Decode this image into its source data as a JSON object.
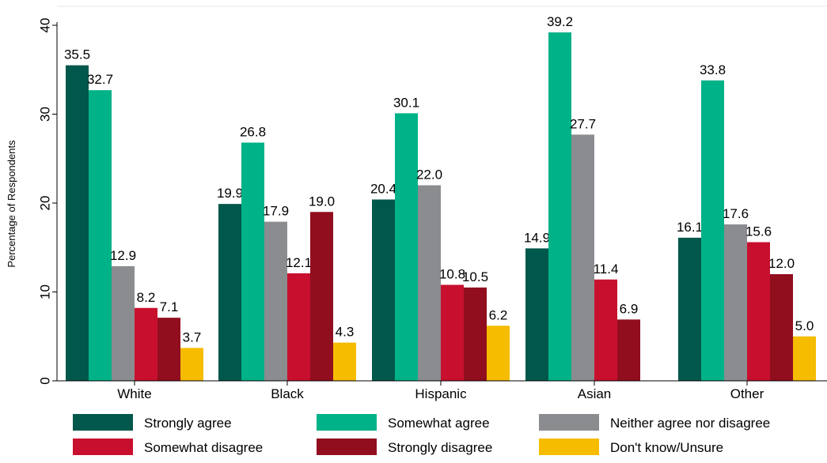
{
  "chart_data": {
    "type": "bar",
    "ylabel": "Percentage of Respondents",
    "ylim": [
      0,
      40
    ],
    "yticks": [
      0,
      10,
      20,
      30,
      40
    ],
    "categories": [
      "White",
      "Black",
      "Hispanic",
      "Asian",
      "Other"
    ],
    "series": [
      {
        "name": "Strongly agree",
        "color": "#00574b",
        "values": [
          35.5,
          19.9,
          20.4,
          14.9,
          16.1
        ]
      },
      {
        "name": "Somewhat agree",
        "color": "#00b288",
        "values": [
          32.7,
          26.8,
          30.1,
          39.2,
          33.8
        ]
      },
      {
        "name": "Neither agree nor disagree",
        "color": "#8a8c8f",
        "values": [
          12.9,
          17.9,
          22.0,
          27.7,
          17.6
        ]
      },
      {
        "name": "Somewhat disagree",
        "color": "#c8102e",
        "values": [
          8.2,
          12.1,
          10.8,
          11.4,
          15.6
        ]
      },
      {
        "name": "Strongly disagree",
        "color": "#910e1f",
        "values": [
          7.1,
          19.0,
          10.5,
          6.9,
          12.0
        ]
      },
      {
        "name": "Don't know/Unsure",
        "color": "#f5bc00",
        "values": [
          3.7,
          4.3,
          6.2,
          null,
          5.0
        ]
      }
    ],
    "value_labels": [
      [
        "35.5",
        "32.7",
        "12.9",
        "8.2",
        "7.1",
        "3.7"
      ],
      [
        "19.9",
        "26.8",
        "17.9",
        "12.1",
        "19.0",
        "4.3"
      ],
      [
        "20.4",
        "30.1",
        "22.0",
        "10.8",
        "10.5",
        "6.2"
      ],
      [
        "14.9",
        "39.2",
        "27.7",
        "11.4",
        "6.9",
        ""
      ],
      [
        "16.1",
        "33.8",
        "17.6",
        "15.6",
        "12.0",
        "5.0"
      ]
    ],
    "grid": false,
    "legend_position": "bottom"
  }
}
